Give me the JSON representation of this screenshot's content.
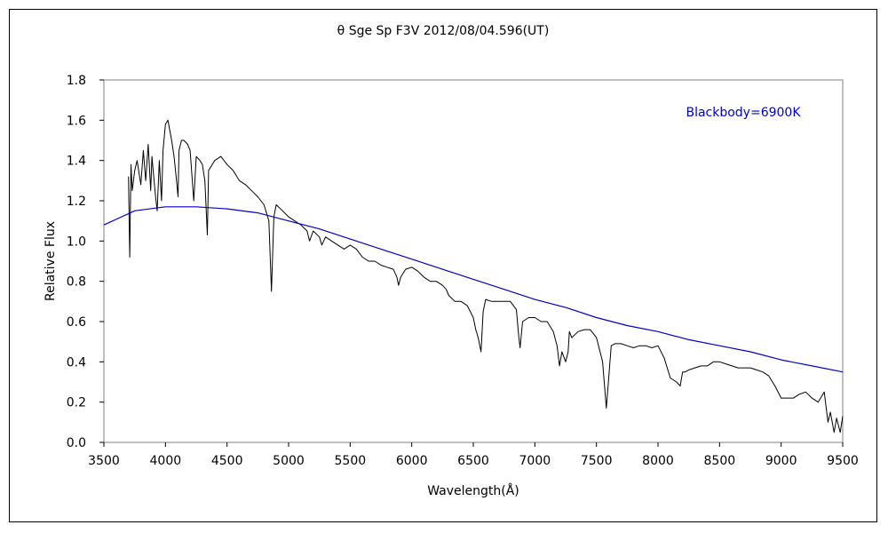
{
  "chart_data": {
    "type": "line",
    "title": "θ Sge    Sp F3V    2012/08/04.596(UT)",
    "xlabel": "Wavelength(Å)",
    "ylabel": "Relative Flux",
    "xlim": [
      3500,
      9500
    ],
    "ylim": [
      0.0,
      1.8
    ],
    "x_ticks": [
      3500,
      4000,
      4500,
      5000,
      5500,
      6000,
      6500,
      7000,
      7500,
      8000,
      8500,
      9000,
      9500
    ],
    "x_tick_labels": [
      "3500",
      "4000",
      "4500",
      "5000",
      "5500",
      "6000",
      "6500",
      "7000",
      "7500",
      "8000",
      "8500",
      "9000",
      "9500"
    ],
    "y_ticks": [
      0.0,
      0.2,
      0.4,
      0.6,
      0.8,
      1.0,
      1.2,
      1.4,
      1.6,
      1.8
    ],
    "y_tick_labels": [
      "0.0",
      "0.2",
      "0.4",
      "0.6",
      "0.8",
      "1.0",
      "1.2",
      "1.4",
      "1.6",
      "1.8"
    ],
    "grid": false,
    "legend_position": "top-right",
    "annotation": "Blackbody=6900K",
    "series": [
      {
        "color": "#000000",
        "x": [
          3700,
          3710,
          3720,
          3730,
          3750,
          3770,
          3800,
          3820,
          3840,
          3860,
          3880,
          3890,
          3900,
          3920,
          3933,
          3950,
          3968,
          3980,
          4000,
          4020,
          4050,
          4070,
          4090,
          4102,
          4110,
          4130,
          4150,
          4180,
          4200,
          4230,
          4250,
          4280,
          4300,
          4320,
          4340,
          4350,
          4380,
          4400,
          4450,
          4500,
          4550,
          4600,
          4650,
          4700,
          4750,
          4800,
          4840,
          4861,
          4880,
          4900,
          4950,
          5000,
          5050,
          5100,
          5150,
          5170,
          5200,
          5250,
          5270,
          5300,
          5350,
          5400,
          5450,
          5500,
          5550,
          5600,
          5650,
          5700,
          5750,
          5800,
          5850,
          5880,
          5893,
          5910,
          5950,
          6000,
          6050,
          6100,
          6150,
          6200,
          6250,
          6280,
          6300,
          6350,
          6400,
          6450,
          6500,
          6520,
          6540,
          6563,
          6580,
          6600,
          6650,
          6700,
          6750,
          6800,
          6850,
          6870,
          6880,
          6900,
          6950,
          7000,
          7050,
          7100,
          7150,
          7180,
          7200,
          7220,
          7250,
          7270,
          7280,
          7300,
          7350,
          7400,
          7450,
          7500,
          7550,
          7580,
          7600,
          7620,
          7650,
          7700,
          7750,
          7800,
          7850,
          7900,
          7950,
          8000,
          8050,
          8100,
          8150,
          8180,
          8200,
          8220,
          8250,
          8300,
          8350,
          8400,
          8450,
          8500,
          8550,
          8600,
          8650,
          8700,
          8750,
          8800,
          8850,
          8900,
          8950,
          9000,
          9050,
          9100,
          9150,
          9200,
          9250,
          9300,
          9350,
          9380,
          9400,
          9430,
          9450,
          9480,
          9500
        ],
        "values": [
          1.32,
          0.92,
          1.38,
          1.25,
          1.35,
          1.4,
          1.28,
          1.45,
          1.3,
          1.48,
          1.25,
          1.42,
          1.35,
          1.22,
          1.15,
          1.4,
          1.2,
          1.45,
          1.58,
          1.6,
          1.5,
          1.42,
          1.3,
          1.22,
          1.45,
          1.5,
          1.5,
          1.48,
          1.45,
          1.2,
          1.42,
          1.4,
          1.38,
          1.3,
          1.03,
          1.35,
          1.38,
          1.4,
          1.42,
          1.38,
          1.35,
          1.3,
          1.28,
          1.25,
          1.22,
          1.18,
          1.1,
          0.75,
          1.12,
          1.18,
          1.15,
          1.12,
          1.1,
          1.08,
          1.05,
          1.0,
          1.05,
          1.02,
          0.98,
          1.02,
          1.0,
          0.98,
          0.96,
          0.98,
          0.96,
          0.92,
          0.9,
          0.9,
          0.88,
          0.87,
          0.86,
          0.82,
          0.78,
          0.82,
          0.86,
          0.87,
          0.85,
          0.82,
          0.8,
          0.8,
          0.78,
          0.76,
          0.73,
          0.7,
          0.7,
          0.68,
          0.62,
          0.56,
          0.52,
          0.45,
          0.65,
          0.71,
          0.7,
          0.7,
          0.7,
          0.7,
          0.66,
          0.52,
          0.47,
          0.6,
          0.62,
          0.62,
          0.6,
          0.6,
          0.55,
          0.48,
          0.38,
          0.45,
          0.4,
          0.45,
          0.55,
          0.52,
          0.55,
          0.56,
          0.56,
          0.52,
          0.4,
          0.17,
          0.32,
          0.48,
          0.49,
          0.49,
          0.48,
          0.47,
          0.48,
          0.48,
          0.47,
          0.48,
          0.42,
          0.32,
          0.3,
          0.28,
          0.35,
          0.35,
          0.36,
          0.37,
          0.38,
          0.38,
          0.4,
          0.4,
          0.39,
          0.38,
          0.37,
          0.37,
          0.37,
          0.36,
          0.35,
          0.33,
          0.28,
          0.22,
          0.22,
          0.22,
          0.24,
          0.25,
          0.22,
          0.2,
          0.25,
          0.1,
          0.15,
          0.05,
          0.12,
          0.05,
          0.13
        ]
      },
      {
        "name": "Blackbody=6900K",
        "color": "#0000cc",
        "x": [
          3500,
          3750,
          4000,
          4250,
          4500,
          4750,
          5000,
          5250,
          5500,
          5750,
          6000,
          6250,
          6500,
          6750,
          7000,
          7250,
          7500,
          7750,
          8000,
          8250,
          8500,
          8750,
          9000,
          9250,
          9500
        ],
        "values": [
          1.08,
          1.15,
          1.17,
          1.17,
          1.16,
          1.14,
          1.1,
          1.06,
          1.01,
          0.96,
          0.91,
          0.86,
          0.81,
          0.76,
          0.71,
          0.67,
          0.62,
          0.58,
          0.55,
          0.51,
          0.48,
          0.45,
          0.41,
          0.38,
          0.35
        ]
      }
    ]
  }
}
